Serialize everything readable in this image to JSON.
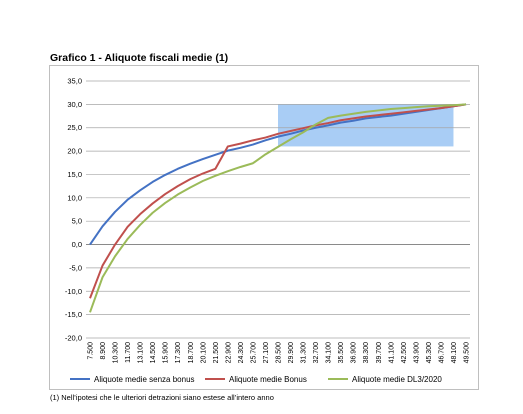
{
  "title": "Grafico 1 - Aliquote fiscali medie (1)",
  "footnote": "(1)  Nell’ipotesi che le ulteriori detrazioni siano estese all’intero anno",
  "chart_data": {
    "type": "line",
    "title": "Grafico 1 - Aliquote fiscali medie (1)",
    "xlabel": "",
    "ylabel": "",
    "ylim": [
      -20,
      35
    ],
    "grid": true,
    "legend_position": "bottom",
    "y_ticks": [
      "35,0",
      "30,0",
      "25,0",
      "20,0",
      "15,0",
      "10,0",
      "5,0",
      "0,0",
      "-5,0",
      "-10,0",
      "-15,0",
      "-20,0"
    ],
    "x": [
      "7.500",
      "8.900",
      "10.300",
      "11.700",
      "13.100",
      "14.500",
      "15.900",
      "17.300",
      "18.700",
      "20.100",
      "21.500",
      "22.900",
      "24.300",
      "25.700",
      "27.100",
      "28.500",
      "29.900",
      "31.300",
      "32.700",
      "34.100",
      "35.500",
      "36.900",
      "38.300",
      "39.700",
      "41.100",
      "42.500",
      "43.900",
      "45.300",
      "46.700",
      "48.100",
      "49.500"
    ],
    "highlight_region": {
      "x_from": "28.500",
      "x_to": "48.100",
      "y_from": 21,
      "y_to": 30,
      "color": "#a9cdf5"
    },
    "series": [
      {
        "name": "Aliquote medie senza bonus",
        "color": "#4472c4",
        "values": [
          0.0,
          3.9,
          7.0,
          9.6,
          11.6,
          13.4,
          14.9,
          16.2,
          17.3,
          18.3,
          19.2,
          20.1,
          20.7,
          21.4,
          22.3,
          23.1,
          23.7,
          24.4,
          25.0,
          25.5,
          26.1,
          26.5,
          27.0,
          27.3,
          27.6,
          28.0,
          28.4,
          28.8,
          29.2,
          29.6,
          30.0
        ]
      },
      {
        "name": "Aliquote medie Bonus",
        "color": "#c0504d",
        "values": [
          -11.5,
          -4.5,
          0.0,
          3.8,
          6.5,
          8.8,
          10.8,
          12.5,
          14.0,
          15.2,
          16.2,
          21.0,
          21.6,
          22.3,
          22.9,
          23.7,
          24.3,
          24.9,
          25.5,
          26.0,
          26.6,
          27.0,
          27.4,
          27.7,
          28.0,
          28.3,
          28.6,
          28.9,
          29.2,
          29.6,
          30.0
        ]
      },
      {
        "name": "Aliquote medie DL3/2020",
        "color": "#9bbb59",
        "values": [
          -14.5,
          -7.0,
          -2.5,
          1.2,
          4.2,
          6.8,
          8.9,
          10.7,
          12.2,
          13.6,
          14.7,
          15.7,
          16.6,
          17.4,
          19.3,
          20.9,
          22.5,
          24.0,
          25.7,
          27.1,
          27.6,
          28.0,
          28.4,
          28.7,
          29.0,
          29.2,
          29.4,
          29.6,
          29.7,
          29.8,
          30.0
        ]
      }
    ]
  }
}
